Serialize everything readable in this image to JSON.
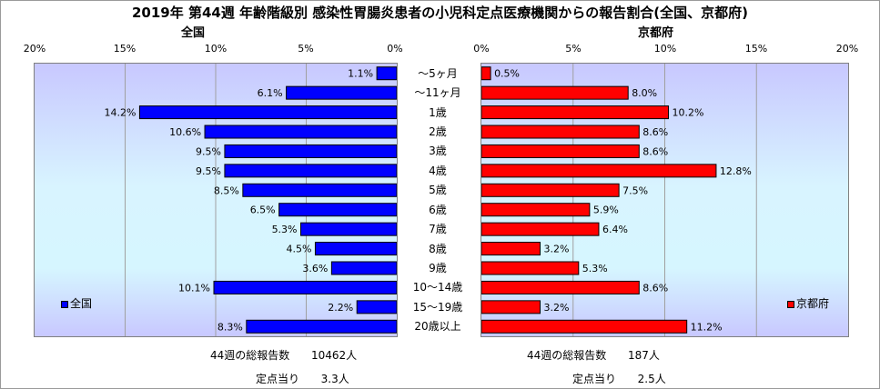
{
  "title": "2019年 第44週 年齢階級別 感染性胃腸炎患者の小児科定点医療機関からの報告割合(全国、京都府)",
  "chart_data": {
    "type": "bar",
    "orientation": "horizontal",
    "categories": [
      "～5ヶ月",
      "～11ヶ月",
      "1歳",
      "2歳",
      "3歳",
      "4歳",
      "5歳",
      "6歳",
      "7歳",
      "8歳",
      "9歳",
      "10～14歳",
      "15～19歳",
      "20歳以上"
    ],
    "tick_labels": [
      "0%",
      "5%",
      "10%",
      "15%",
      "20%"
    ],
    "xlim": [
      0,
      20
    ],
    "panels": [
      {
        "subtitle": "全国",
        "legend": "全国",
        "color": "#0000ff",
        "direction": "left",
        "values": [
          1.1,
          6.1,
          14.2,
          10.6,
          9.5,
          9.5,
          8.5,
          6.5,
          5.3,
          4.5,
          3.6,
          10.1,
          2.2,
          8.3
        ],
        "value_labels": [
          "1.1%",
          "6.1%",
          "14.2%",
          "10.6%",
          "9.5%",
          "9.5%",
          "8.5%",
          "6.5%",
          "5.3%",
          "4.5%",
          "3.6%",
          "10.1%",
          "2.2%",
          "8.3%"
        ]
      },
      {
        "subtitle": "京都府",
        "legend": "京都府",
        "color": "#ff0000",
        "direction": "right",
        "values": [
          0.5,
          8.0,
          10.2,
          8.6,
          8.6,
          12.8,
          7.5,
          5.9,
          6.4,
          3.2,
          5.3,
          8.6,
          3.2,
          11.2
        ],
        "value_labels": [
          "0.5%",
          "8.0%",
          "10.2%",
          "8.6%",
          "8.6%",
          "12.8%",
          "7.5%",
          "5.9%",
          "6.4%",
          "3.2%",
          "5.3%",
          "8.6%",
          "3.2%",
          "11.2%"
        ]
      }
    ]
  },
  "footer": {
    "left": {
      "total_label": "44週の総報告数",
      "total_value": "10462人",
      "per_label": "定点当り",
      "per_value": "3.3人"
    },
    "right": {
      "total_label": "44週の総報告数",
      "total_value": "187人",
      "per_label": "定点当り",
      "per_value": "2.5人"
    }
  }
}
